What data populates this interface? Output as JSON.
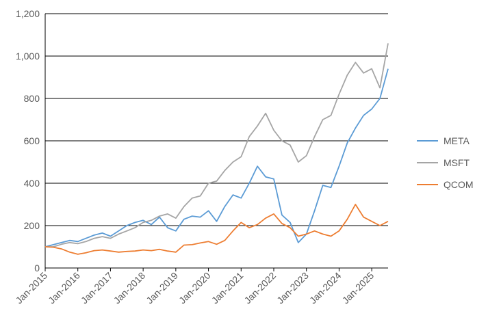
{
  "chart_data": {
    "type": "line",
    "title": "",
    "xlabel": "",
    "ylabel": "",
    "ylim": [
      0,
      1200
    ],
    "yticks": [
      "0",
      "200",
      "400",
      "600",
      "800",
      "1,000",
      "1,200"
    ],
    "ytick_values": [
      0,
      200,
      400,
      600,
      800,
      1000,
      1200
    ],
    "xticks": [
      "Jan-2015",
      "Jan-2016",
      "Jan-2017",
      "Jan-2018",
      "Jan-2019",
      "Jan-2020",
      "Jan-2021",
      "Jan-2022",
      "Jan-2023",
      "Jan-2024",
      "Jan-2025"
    ],
    "xlim": [
      "2015-01",
      "2025-07"
    ],
    "grid": "horizontal",
    "legend": "right",
    "x": [
      "2015-01",
      "2015-04",
      "2015-07",
      "2015-10",
      "2016-01",
      "2016-04",
      "2016-07",
      "2016-10",
      "2017-01",
      "2017-04",
      "2017-07",
      "2017-10",
      "2018-01",
      "2018-04",
      "2018-07",
      "2018-10",
      "2019-01",
      "2019-04",
      "2019-07",
      "2019-10",
      "2020-01",
      "2020-04",
      "2020-07",
      "2020-10",
      "2021-01",
      "2021-04",
      "2021-07",
      "2021-10",
      "2022-01",
      "2022-04",
      "2022-07",
      "2022-10",
      "2023-01",
      "2023-04",
      "2023-07",
      "2023-10",
      "2024-01",
      "2024-04",
      "2024-07",
      "2024-10",
      "2025-01",
      "2025-04",
      "2025-07"
    ],
    "series": [
      {
        "name": "META",
        "color": "#5B9BD5",
        "values": [
          100,
          110,
          120,
          130,
          125,
          140,
          155,
          165,
          150,
          175,
          200,
          215,
          225,
          205,
          240,
          190,
          175,
          230,
          245,
          240,
          270,
          220,
          290,
          345,
          330,
          400,
          480,
          430,
          420,
          250,
          215,
          120,
          160,
          270,
          390,
          380,
          480,
          590,
          660,
          720,
          750,
          800,
          940
        ]
      },
      {
        "name": "MSFT",
        "color": "#A5A5A5",
        "values": [
          100,
          100,
          112,
          120,
          115,
          125,
          140,
          148,
          140,
          160,
          175,
          190,
          215,
          225,
          245,
          255,
          235,
          290,
          330,
          340,
          400,
          410,
          460,
          500,
          525,
          620,
          670,
          730,
          650,
          600,
          580,
          500,
          530,
          620,
          700,
          720,
          820,
          910,
          970,
          920,
          940,
          850,
          1060
        ]
      },
      {
        "name": "QCOM",
        "color": "#ED7D31",
        "values": [
          100,
          98,
          90,
          75,
          65,
          72,
          82,
          85,
          80,
          75,
          78,
          80,
          85,
          82,
          88,
          80,
          75,
          108,
          110,
          118,
          125,
          112,
          130,
          175,
          215,
          190,
          205,
          235,
          255,
          210,
          190,
          150,
          160,
          175,
          160,
          150,
          175,
          230,
          300,
          240,
          220,
          200,
          220
        ]
      }
    ]
  }
}
